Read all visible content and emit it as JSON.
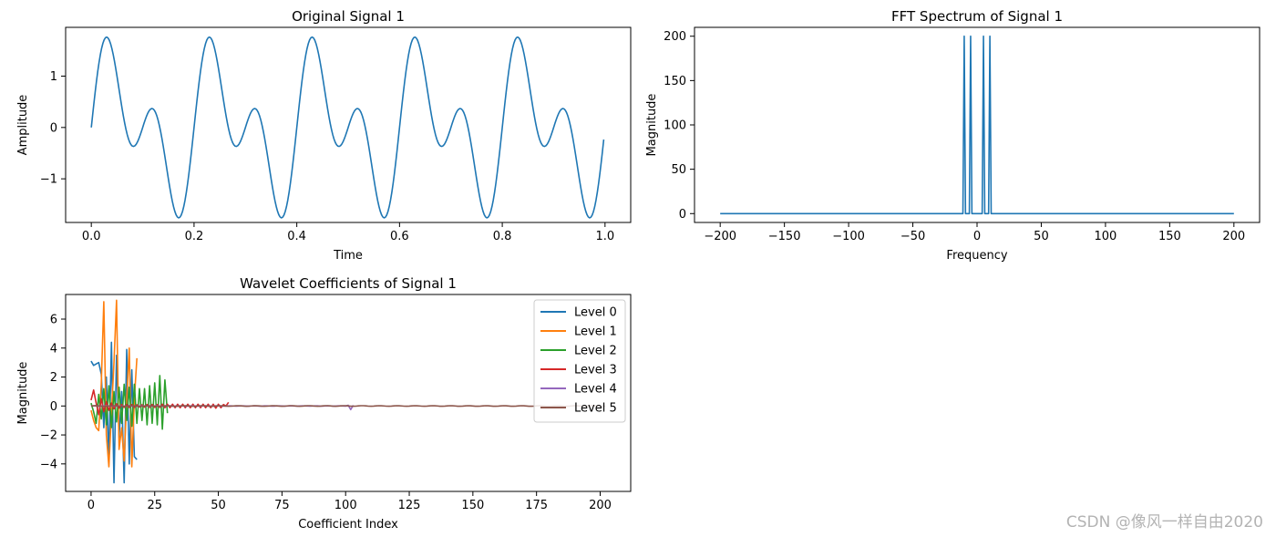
{
  "watermark": "CSDN @像风一样自由2020",
  "chart_data": [
    {
      "id": "signal",
      "type": "line",
      "title": "Original Signal 1",
      "xlabel": "Time",
      "ylabel": "Amplitude",
      "xlim": [
        -0.05,
        1.05
      ],
      "ylim": [
        -1.85,
        1.95
      ],
      "xticks": [
        0.0,
        0.2,
        0.4,
        0.6,
        0.8,
        1.0
      ],
      "xtick_labels": [
        "0.0",
        "0.2",
        "0.4",
        "0.6",
        "0.8",
        "1.0"
      ],
      "yticks": [
        -1,
        0,
        1
      ],
      "ytick_labels": [
        "−1",
        "0",
        "1"
      ],
      "series": [
        {
          "formula": "sin(2*pi*5*t) + sin(2*pi*10*t)",
          "x_range": [
            0,
            0.9975
          ],
          "samples": 400,
          "color": "#1f77b4"
        }
      ],
      "grid": false
    },
    {
      "id": "fft",
      "type": "line",
      "title": "FFT Spectrum of Signal 1",
      "xlabel": "Frequency",
      "ylabel": "Magnitude",
      "xlim": [
        -220,
        220
      ],
      "ylim": [
        -10,
        210
      ],
      "xticks": [
        -200,
        -150,
        -100,
        -50,
        0,
        50,
        100,
        150,
        200
      ],
      "xtick_labels": [
        "−200",
        "−150",
        "−100",
        "−50",
        "0",
        "50",
        "100",
        "150",
        "200"
      ],
      "yticks": [
        0,
        50,
        100,
        150,
        200
      ],
      "ytick_labels": [
        "0",
        "50",
        "100",
        "150",
        "200"
      ],
      "series": [
        {
          "peaks": [
            [
              -10,
              200
            ],
            [
              -5,
              200
            ],
            [
              5,
              200
            ],
            [
              10,
              200
            ]
          ],
          "x_range": [
            -200,
            200
          ],
          "color": "#1f77b4"
        }
      ],
      "grid": false
    },
    {
      "id": "wavelet",
      "type": "line",
      "title": "Wavelet Coefficients of Signal 1",
      "xlabel": "Coefficient Index",
      "ylabel": "Magnitude",
      "xlim": [
        -10,
        212
      ],
      "ylim": [
        -5.9,
        7.7
      ],
      "xticks": [
        0,
        25,
        50,
        75,
        100,
        125,
        150,
        175,
        200
      ],
      "xtick_labels": [
        "0",
        "25",
        "50",
        "75",
        "100",
        "125",
        "150",
        "175",
        "200"
      ],
      "yticks": [
        -4,
        -2,
        0,
        2,
        4,
        6
      ],
      "ytick_labels": [
        "−4",
        "−2",
        "0",
        "2",
        "4",
        "6"
      ],
      "legend_position": "top-right",
      "series": [
        {
          "name": "Level 0",
          "color": "#1f77b4",
          "values": [
            3.1,
            2.8,
            2.9,
            3.0,
            2.2,
            -1.5,
            2.0,
            -3.8,
            4.4,
            -5.3,
            3.5,
            -2.2,
            1.0,
            -5.3,
            3.9,
            -4.0,
            2.5,
            -3.5,
            -3.7
          ]
        },
        {
          "name": "Level 1",
          "color": "#ff7f0e",
          "values": [
            -0.3,
            -1.0,
            -1.5,
            -1.7,
            1.5,
            7.2,
            -2.0,
            -4.2,
            -0.5,
            3.0,
            7.3,
            -3.0,
            -1.5,
            -3.8,
            0.5,
            4.0,
            -4.2,
            0.5,
            3.3
          ]
        },
        {
          "name": "Level 2",
          "color": "#2ca02c",
          "values": [
            0.2,
            -0.4,
            -1.2,
            0.8,
            -0.9,
            1.2,
            -1.3,
            1.4,
            -1.5,
            1.0,
            -1.1,
            1.3,
            -1.2,
            1.5,
            -1.0,
            1.3,
            -1.4,
            1.5,
            -1.2,
            1.2,
            -1.0,
            1.2,
            -1.3,
            1.4,
            -1.2,
            1.6,
            -1.3,
            2.1,
            -1.6,
            1.8,
            -0.5
          ]
        },
        {
          "name": "Level 3",
          "color": "#d62728",
          "values": [
            0.4,
            1.1,
            0.2,
            -0.6,
            0.5,
            -0.4,
            0.3,
            -0.3,
            0.2,
            -0.2,
            0.15,
            -0.15,
            0.1,
            -0.1,
            0.1,
            -0.1,
            0.1,
            -0.1,
            0.08,
            -0.08,
            0.08,
            -0.08,
            0.1,
            -0.1,
            0.1,
            -0.1,
            0.1,
            -0.1,
            0.12,
            -0.12,
            0.12,
            -0.12,
            0.12,
            -0.12,
            0.12,
            -0.12,
            0.12,
            -0.12,
            0.12,
            -0.12,
            0.12,
            -0.12,
            0.12,
            -0.12,
            0.12,
            -0.12,
            0.12,
            -0.12,
            0.12,
            -0.15,
            0.12,
            -0.12,
            0.1,
            0.0,
            0.25
          ]
        },
        {
          "name": "Level 4",
          "color": "#9467bd",
          "length": 104,
          "spikes": [
            [
              101,
              0.05
            ],
            [
              102,
              -0.25
            ],
            [
              103,
              0.05
            ]
          ]
        },
        {
          "name": "Level 5",
          "color": "#8c564b",
          "length": 203,
          "amplitude": 0.02
        }
      ]
    }
  ]
}
